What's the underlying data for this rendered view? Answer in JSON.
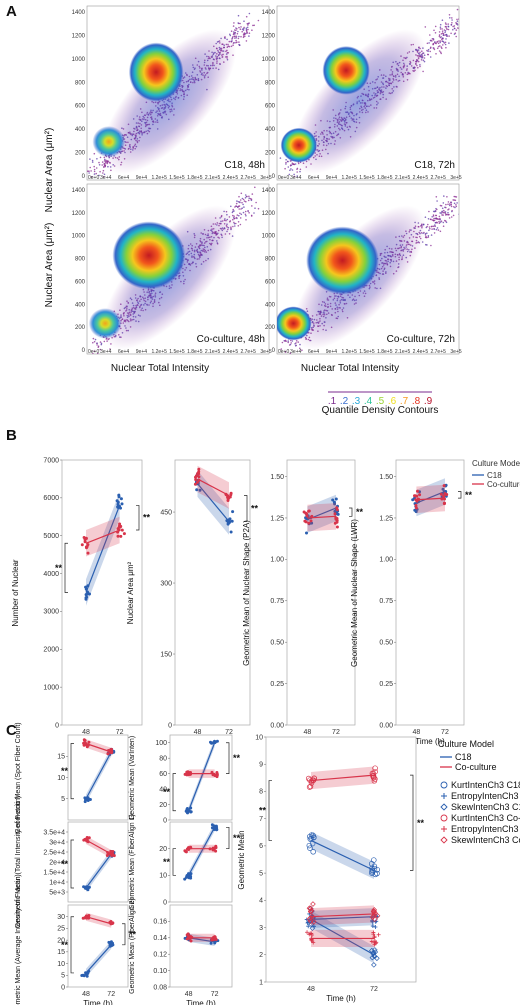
{
  "panels": {
    "A": "A",
    "B": "B",
    "C": "C"
  },
  "colors": {
    "c18": "#2a5fb0",
    "coculture": "#d8344a",
    "band_c18": "#9fb6de",
    "band_co": "#f2b3bd",
    "density": [
      "#7b2b8f",
      "#3b6fd0",
      "#2aa8d8",
      "#2cc39a",
      "#9ad334",
      "#f0e020",
      "#f79a1e",
      "#e8321e",
      "#b8102a"
    ]
  },
  "panel_a": {
    "ylabel": "Nuclear Area (μm²)",
    "xlabel": "Nuclear Total Intensity",
    "y_ticks": [
      "0",
      "200",
      "400",
      "600",
      "800",
      "1000",
      "1200",
      "1400"
    ],
    "x_ticks": [
      "0e+0",
      "3e+4",
      "6e+4",
      "9e+4",
      "1.2e+5",
      "1.5e+5",
      "1.8e+5",
      "2.1e+5",
      "2.4e+5",
      "2.7e+5",
      "3e+5"
    ],
    "x_ticks_tail": [
      "0e+0",
      "3e+4",
      "6e+4",
      "9e+4",
      "1.2e+5",
      "1.5e+5",
      "1.8e+5",
      "2.1e+5",
      "2.4e+5",
      "2.7e+5",
      "3e+5"
    ],
    "plots": [
      {
        "label": "C18, 48h"
      },
      {
        "label": "C18, 72h"
      },
      {
        "label": "Co-culture, 48h"
      },
      {
        "label": "Co-culture, 72h"
      }
    ],
    "contour_values": [
      ".1",
      ".2",
      ".3",
      ".4",
      ".5",
      ".6",
      ".7",
      ".8",
      ".9"
    ],
    "contour_title": "Quantile Density Contours"
  },
  "chart_data": [
    {
      "type": "line",
      "ylabel": "Number of Nuclear",
      "xlabel": "Time (h)",
      "categories": [
        "48",
        "72"
      ],
      "ylim": [
        0,
        7000
      ],
      "y_ticks": [
        "0",
        "1000",
        "2000",
        "3000",
        "4000",
        "5000",
        "6000",
        "7000"
      ],
      "series": [
        {
          "name": "C18",
          "values": [
            3500,
            5800
          ]
        },
        {
          "name": "Co-culture",
          "values": [
            4800,
            5150
          ]
        }
      ],
      "annotation": "**"
    },
    {
      "type": "line",
      "ylabel": "Nuclear Area μm²",
      "xlabel": "Time (h)",
      "categories": [
        "48",
        "72"
      ],
      "ylim": [
        0,
        560
      ],
      "y_ticks": [
        "0",
        "150",
        "300",
        "450"
      ],
      "series": [
        {
          "name": "C18",
          "values": [
            510,
            430
          ]
        },
        {
          "name": "Co-culture",
          "values": [
            520,
            485
          ]
        }
      ],
      "annotation": "**"
    },
    {
      "type": "line",
      "ylabel": "Geometric Mean of Nuclear Shape (P2A)",
      "xlabel": "Time (h)",
      "categories": [
        "48",
        "72"
      ],
      "ylim": [
        0,
        1.6
      ],
      "y_ticks": [
        "0.00",
        "0.25",
        "0.50",
        "0.75",
        "1.00",
        "1.25",
        "1.50"
      ],
      "series": [
        {
          "name": "C18",
          "values": [
            1.24,
            1.31
          ]
        },
        {
          "name": "Co-culture",
          "values": [
            1.25,
            1.26
          ]
        }
      ],
      "annotation": "**"
    },
    {
      "type": "line",
      "ylabel": "Geometric Mean of Nuclear Shape (LWR)",
      "xlabel": "Time (h)",
      "categories": [
        "48",
        "72"
      ],
      "ylim": [
        0,
        1.6
      ],
      "y_ticks": [
        "0.00",
        "0.25",
        "0.50",
        "0.75",
        "1.00",
        "1.25",
        "1.50"
      ],
      "series": [
        {
          "name": "C18",
          "values": [
            1.34,
            1.41
          ]
        },
        {
          "name": "Co-culture",
          "values": [
            1.36,
            1.37
          ]
        }
      ],
      "legend_title": "Culture Model",
      "legend": [
        "C18",
        "Co-culture"
      ],
      "annotation": "**"
    },
    {
      "type": "line",
      "ylabel": "Geometric Mean (Spot Fiber Count)",
      "categories": [
        "48",
        "72"
      ],
      "ylim": [
        0,
        20
      ],
      "y_ticks": [
        "5",
        "10",
        "15"
      ],
      "series": [
        {
          "name": "C18",
          "values": [
            5,
            16
          ]
        },
        {
          "name": "Co-culture",
          "values": [
            18,
            16
          ]
        }
      ],
      "annotation": "**"
    },
    {
      "type": "line",
      "ylabel": "Geometric Mean (Total Intensity of F-actin)",
      "categories": [
        "48",
        "72"
      ],
      "ylim": [
        0,
        40000.0
      ],
      "y_ticks": [
        "5e+3",
        "1e+4",
        "1.5e+4",
        "2e+4",
        "2.5e+4",
        "3e+4",
        "3.5e+4"
      ],
      "series": [
        {
          "name": "C18",
          "values": [
            7000,
            24000
          ]
        },
        {
          "name": "Co-culture",
          "values": [
            31000,
            24000
          ]
        }
      ],
      "annotation": "**"
    },
    {
      "type": "line",
      "ylabel": "Geometric Mean (Average Intensity of F-actin)",
      "xlabel": "Time (h)",
      "categories": [
        "48",
        "72"
      ],
      "ylim": [
        0,
        35
      ],
      "y_ticks": [
        "0",
        "5",
        "10",
        "15",
        "20",
        "25",
        "30"
      ],
      "series": [
        {
          "name": "C18",
          "values": [
            6,
            18
          ]
        },
        {
          "name": "Co-culture",
          "values": [
            30,
            27
          ]
        }
      ],
      "annotation": "**"
    },
    {
      "type": "line",
      "ylabel": "Geometric Mean (VarInten)",
      "categories": [
        "48",
        "72"
      ],
      "ylim": [
        0,
        110
      ],
      "y_ticks": [
        "0",
        "20",
        "40",
        "60",
        "80",
        "100"
      ],
      "series": [
        {
          "name": "C18",
          "values": [
            12,
            100
          ]
        },
        {
          "name": "Co-culture",
          "values": [
            60,
            60
          ]
        }
      ],
      "annotation": "**"
    },
    {
      "type": "line",
      "ylabel": "Geometric Mean (FiberAlign 1)",
      "categories": [
        "48",
        "72"
      ],
      "ylim": [
        0,
        30
      ],
      "y_ticks": [
        "0",
        "10",
        "20"
      ],
      "series": [
        {
          "name": "C18",
          "values": [
            10,
            28
          ]
        },
        {
          "name": "Co-culture",
          "values": [
            20,
            20
          ]
        }
      ],
      "annotation": "**"
    },
    {
      "type": "line",
      "ylabel": "Geometric Mean (FiberAlign 2)",
      "xlabel": "Time (h)",
      "categories": [
        "48",
        "72"
      ],
      "ylim": [
        0.08,
        0.18
      ],
      "y_ticks": [
        "0.08",
        "0.10",
        "0.12",
        "0.14",
        "0.16"
      ],
      "series": [
        {
          "name": "C18",
          "values": [
            0.14,
            0.135
          ]
        },
        {
          "name": "Co-culture",
          "values": [
            0.14,
            0.14
          ]
        }
      ]
    },
    {
      "type": "line",
      "ylabel": "Geometric Mean",
      "xlabel": "Time (h)",
      "categories": [
        "48",
        "72"
      ],
      "ylim": [
        1,
        10
      ],
      "y_ticks": [
        "1",
        "2",
        "3",
        "4",
        "5",
        "6",
        "7",
        "8",
        "9",
        "10"
      ],
      "series": [
        {
          "name": "KurtIntenCh3 C18",
          "values": [
            6.2,
            5.1
          ]
        },
        {
          "name": "EntropyIntenCh3 C18",
          "values": [
            3.3,
            3.4
          ]
        },
        {
          "name": "SkewIntenCh3 C18",
          "values": [
            3.3,
            2.0
          ]
        },
        {
          "name": "KurtIntenCh3 Co-culture",
          "values": [
            8.4,
            8.6
          ]
        },
        {
          "name": "EntropyIntenCh3 Co-culture",
          "values": [
            2.6,
            2.6
          ]
        },
        {
          "name": "SkewIntenCh3 Co-culture",
          "values": [
            3.4,
            3.5
          ]
        }
      ],
      "legend_title": "Culture Model",
      "legend_lines": [
        "C18",
        "Co-culture"
      ],
      "legend": [
        "KurtIntenCh3 C18",
        "EntropyIntenCh3 C18",
        "SkewIntenCh3 C18",
        "KurtIntenCh3 Co-culture",
        "EntropyIntenCh3 Co-culture",
        "SkewIntenCh3 Co-culture"
      ],
      "annotation": "**"
    }
  ]
}
